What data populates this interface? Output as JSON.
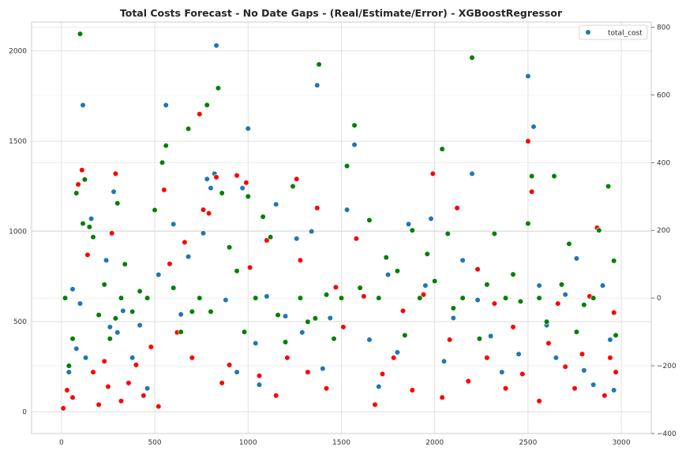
{
  "chart_data": {
    "type": "scatter",
    "title": "Total Costs Forecast - No Date Gaps - (Real/Estimate/Error) - XGBoostRegressor",
    "xlabel": "",
    "ylabel": "",
    "xlim": [
      -160,
      3160
    ],
    "ylim_left": [
      -120,
      2160
    ],
    "ylim_right": [
      -400,
      815
    ],
    "x_ticks": [
      "0",
      "500",
      "1000",
      "1500",
      "2000",
      "2500",
      "3000"
    ],
    "y_left_ticks": [
      "0",
      "500",
      "1000",
      "1500",
      "2000"
    ],
    "y_right_ticks": [
      "800",
      "600",
      "400",
      "200",
      "0",
      "−200",
      "−400"
    ],
    "grid": true,
    "legend": {
      "position": "top-right",
      "entries": [
        "total_cost"
      ]
    },
    "series": [
      {
        "name": "total_cost",
        "color": "#1f77b4",
        "axis": "left",
        "points": [
          [
            40,
            220
          ],
          [
            60,
            680
          ],
          [
            80,
            350
          ],
          [
            100,
            600
          ],
          [
            115,
            1700
          ],
          [
            130,
            300
          ],
          [
            160,
            1070
          ],
          [
            200,
            540
          ],
          [
            240,
            840
          ],
          [
            260,
            470
          ],
          [
            280,
            1220
          ],
          [
            300,
            440
          ],
          [
            330,
            560
          ],
          [
            380,
            300
          ],
          [
            420,
            480
          ],
          [
            460,
            130
          ],
          [
            520,
            760
          ],
          [
            560,
            1700
          ],
          [
            600,
            1040
          ],
          [
            640,
            540
          ],
          [
            680,
            860
          ],
          [
            760,
            990
          ],
          [
            780,
            1290
          ],
          [
            800,
            1240
          ],
          [
            820,
            1320
          ],
          [
            830,
            2030
          ],
          [
            880,
            620
          ],
          [
            940,
            220
          ],
          [
            970,
            1240
          ],
          [
            1000,
            1570
          ],
          [
            1040,
            380
          ],
          [
            1060,
            150
          ],
          [
            1100,
            640
          ],
          [
            1150,
            1150
          ],
          [
            1200,
            530
          ],
          [
            1260,
            960
          ],
          [
            1290,
            440
          ],
          [
            1340,
            1000
          ],
          [
            1370,
            1810
          ],
          [
            1400,
            240
          ],
          [
            1440,
            520
          ],
          [
            1530,
            1120
          ],
          [
            1570,
            1480
          ],
          [
            1600,
            690
          ],
          [
            1650,
            400
          ],
          [
            1700,
            140
          ],
          [
            1750,
            760
          ],
          [
            1800,
            330
          ],
          [
            1860,
            1040
          ],
          [
            1950,
            700
          ],
          [
            1980,
            1070
          ],
          [
            2050,
            280
          ],
          [
            2100,
            520
          ],
          [
            2150,
            840
          ],
          [
            2200,
            1320
          ],
          [
            2230,
            620
          ],
          [
            2300,
            420
          ],
          [
            2360,
            220
          ],
          [
            2450,
            320
          ],
          [
            2500,
            1860
          ],
          [
            2530,
            1580
          ],
          [
            2560,
            700
          ],
          [
            2600,
            480
          ],
          [
            2650,
            300
          ],
          [
            2700,
            650
          ],
          [
            2760,
            850
          ],
          [
            2800,
            230
          ],
          [
            2850,
            150
          ],
          [
            2900,
            700
          ],
          [
            2940,
            400
          ],
          [
            2960,
            120
          ]
        ]
      },
      {
        "name": "",
        "color": "#ff0000",
        "axis": "left",
        "points": [
          [
            10,
            20
          ],
          [
            30,
            120
          ],
          [
            60,
            80
          ],
          [
            90,
            1260
          ],
          [
            110,
            1340
          ],
          [
            140,
            870
          ],
          [
            170,
            220
          ],
          [
            200,
            40
          ],
          [
            230,
            280
          ],
          [
            250,
            140
          ],
          [
            270,
            990
          ],
          [
            290,
            1320
          ],
          [
            320,
            60
          ],
          [
            360,
            160
          ],
          [
            400,
            260
          ],
          [
            440,
            90
          ],
          [
            480,
            360
          ],
          [
            520,
            30
          ],
          [
            550,
            1230
          ],
          [
            580,
            820
          ],
          [
            620,
            440
          ],
          [
            660,
            940
          ],
          [
            700,
            300
          ],
          [
            740,
            1650
          ],
          [
            760,
            1120
          ],
          [
            790,
            1100
          ],
          [
            830,
            1300
          ],
          [
            860,
            160
          ],
          [
            900,
            260
          ],
          [
            940,
            1310
          ],
          [
            990,
            1270
          ],
          [
            1010,
            800
          ],
          [
            1060,
            200
          ],
          [
            1100,
            950
          ],
          [
            1150,
            90
          ],
          [
            1210,
            300
          ],
          [
            1260,
            1290
          ],
          [
            1280,
            840
          ],
          [
            1320,
            220
          ],
          [
            1370,
            1130
          ],
          [
            1420,
            130
          ],
          [
            1470,
            690
          ],
          [
            1510,
            470
          ],
          [
            1580,
            960
          ],
          [
            1620,
            640
          ],
          [
            1680,
            40
          ],
          [
            1720,
            210
          ],
          [
            1780,
            300
          ],
          [
            1830,
            560
          ],
          [
            1880,
            120
          ],
          [
            1940,
            650
          ],
          [
            1990,
            1320
          ],
          [
            2040,
            80
          ],
          [
            2080,
            400
          ],
          [
            2120,
            1130
          ],
          [
            2180,
            170
          ],
          [
            2230,
            790
          ],
          [
            2280,
            300
          ],
          [
            2320,
            600
          ],
          [
            2380,
            130
          ],
          [
            2420,
            470
          ],
          [
            2470,
            210
          ],
          [
            2500,
            1500
          ],
          [
            2520,
            1220
          ],
          [
            2560,
            60
          ],
          [
            2610,
            380
          ],
          [
            2660,
            600
          ],
          [
            2700,
            250
          ],
          [
            2750,
            130
          ],
          [
            2790,
            320
          ],
          [
            2830,
            640
          ],
          [
            2870,
            1020
          ],
          [
            2910,
            90
          ],
          [
            2940,
            300
          ],
          [
            2960,
            550
          ],
          [
            2970,
            220
          ]
        ]
      },
      {
        "name": "",
        "color": "#008000",
        "axis": "right",
        "points": [
          [
            20,
            0
          ],
          [
            40,
            -200
          ],
          [
            60,
            -120
          ],
          [
            80,
            310
          ],
          [
            100,
            780
          ],
          [
            115,
            220
          ],
          [
            125,
            350
          ],
          [
            150,
            210
          ],
          [
            170,
            180
          ],
          [
            200,
            -50
          ],
          [
            230,
            40
          ],
          [
            260,
            -120
          ],
          [
            290,
            -60
          ],
          [
            300,
            280
          ],
          [
            320,
            0
          ],
          [
            340,
            100
          ],
          [
            380,
            -40
          ],
          [
            420,
            20
          ],
          [
            460,
            0
          ],
          [
            500,
            260
          ],
          [
            540,
            400
          ],
          [
            560,
            450
          ],
          [
            600,
            30
          ],
          [
            640,
            -100
          ],
          [
            680,
            500
          ],
          [
            700,
            -40
          ],
          [
            740,
            0
          ],
          [
            780,
            570
          ],
          [
            800,
            -40
          ],
          [
            840,
            620
          ],
          [
            860,
            310
          ],
          [
            900,
            150
          ],
          [
            940,
            80
          ],
          [
            980,
            -100
          ],
          [
            1000,
            300
          ],
          [
            1040,
            0
          ],
          [
            1080,
            240
          ],
          [
            1120,
            180
          ],
          [
            1160,
            -50
          ],
          [
            1200,
            -130
          ],
          [
            1240,
            330
          ],
          [
            1280,
            0
          ],
          [
            1320,
            -70
          ],
          [
            1360,
            -60
          ],
          [
            1380,
            690
          ],
          [
            1420,
            10
          ],
          [
            1460,
            -120
          ],
          [
            1500,
            0
          ],
          [
            1530,
            390
          ],
          [
            1570,
            510
          ],
          [
            1600,
            30
          ],
          [
            1650,
            230
          ],
          [
            1700,
            0
          ],
          [
            1740,
            120
          ],
          [
            1800,
            80
          ],
          [
            1840,
            -110
          ],
          [
            1880,
            200
          ],
          [
            1920,
            0
          ],
          [
            1960,
            130
          ],
          [
            2000,
            50
          ],
          [
            2040,
            440
          ],
          [
            2070,
            190
          ],
          [
            2100,
            -30
          ],
          [
            2150,
            0
          ],
          [
            2200,
            710
          ],
          [
            2240,
            -120
          ],
          [
            2280,
            40
          ],
          [
            2320,
            190
          ],
          [
            2380,
            0
          ],
          [
            2420,
            70
          ],
          [
            2460,
            -10
          ],
          [
            2500,
            220
          ],
          [
            2520,
            360
          ],
          [
            2560,
            0
          ],
          [
            2600,
            -70
          ],
          [
            2640,
            360
          ],
          [
            2680,
            40
          ],
          [
            2720,
            160
          ],
          [
            2760,
            -100
          ],
          [
            2800,
            -20
          ],
          [
            2850,
            0
          ],
          [
            2880,
            200
          ],
          [
            2930,
            330
          ],
          [
            2960,
            110
          ],
          [
            2970,
            -110
          ]
        ]
      }
    ]
  }
}
